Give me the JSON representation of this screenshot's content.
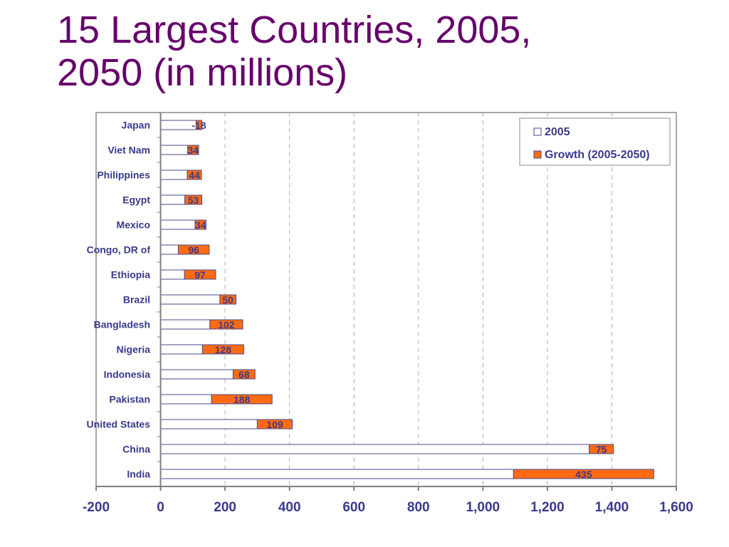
{
  "slide": {
    "title_line1": "15 Largest Countries, 2005,",
    "title_line2": "2050 (in millions)"
  },
  "chart_data": {
    "type": "bar",
    "orientation": "horizontal",
    "stacked": true,
    "title": "",
    "xlabel": "",
    "ylabel": "",
    "xlim": [
      -200,
      1600
    ],
    "x_ticks": [
      -200,
      0,
      200,
      400,
      600,
      800,
      1000,
      1200,
      1400,
      1600
    ],
    "x_tick_labels": [
      "-200",
      "0",
      "200",
      "400",
      "600",
      "800",
      "1,000",
      "1,200",
      "1,400",
      "1,600"
    ],
    "grid": "vertical dashed",
    "legend_position": "top-right",
    "categories": [
      "Japan",
      "Viet Nam",
      "Philippines",
      "Egypt",
      "Mexico",
      "Congo, DR of",
      "Ethiopia",
      "Brazil",
      "Bangladesh",
      "Nigeria",
      "Indonesia",
      "Pakistan",
      "United States",
      "China",
      "India"
    ],
    "series": [
      {
        "name": "2005",
        "color": "#ffffff",
        "values": [
          128,
          84,
          83,
          75,
          107,
          55,
          74,
          184,
          153,
          130,
          225,
          158,
          300,
          1330,
          1095
        ]
      },
      {
        "name": "Growth (2005-2050)",
        "color": "#ff6a13",
        "values": [
          -18,
          34,
          44,
          53,
          34,
          96,
          97,
          50,
          102,
          128,
          68,
          188,
          109,
          75,
          435
        ]
      }
    ],
    "data_labels": [
      "-18",
      "34",
      "44",
      "53",
      "34",
      "96",
      "97",
      "50",
      "102",
      "128",
      "68",
      "188",
      "109",
      "75",
      "435"
    ]
  }
}
